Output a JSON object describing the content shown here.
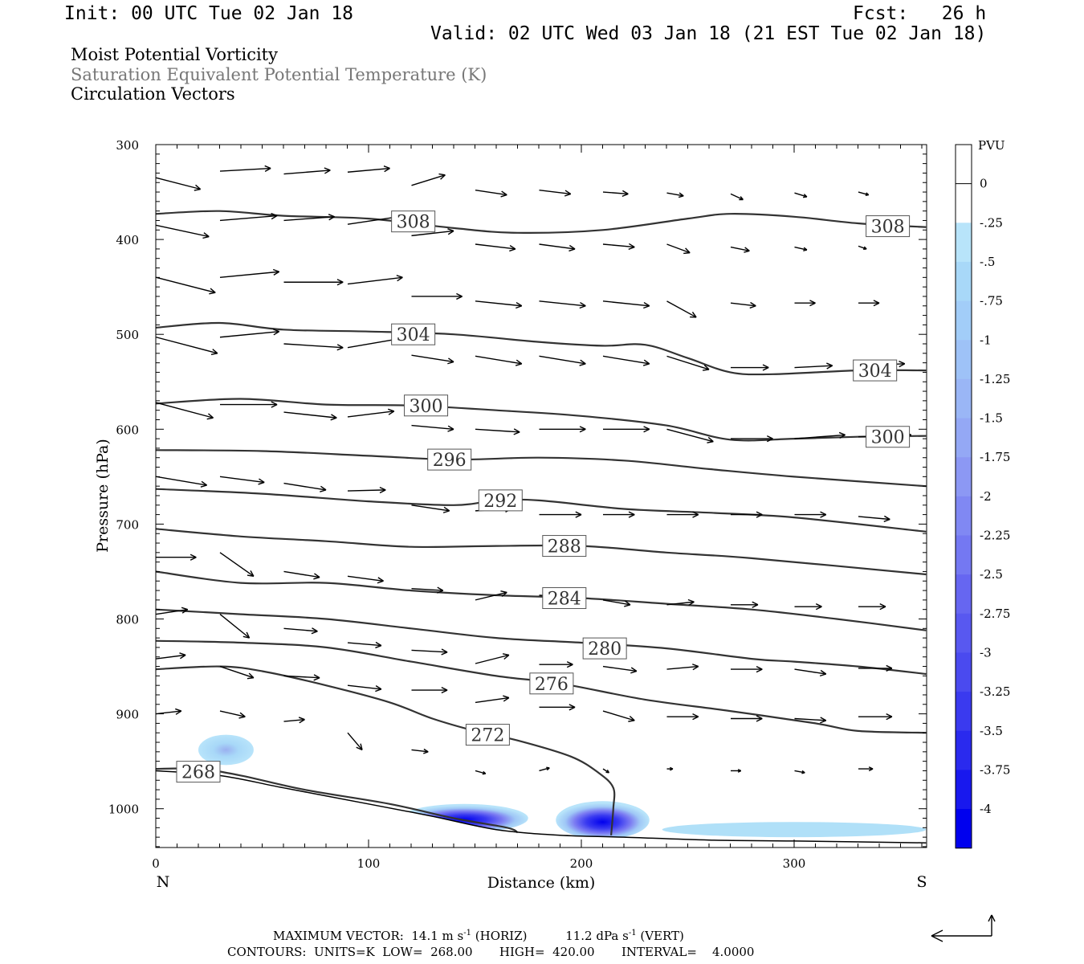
{
  "header": {
    "init": "Init: 00 UTC Tue 02 Jan 18",
    "fcst": "Fcst:   26 h",
    "valid": "Valid: 02 UTC Wed 03 Jan 18 (21 EST Tue 02 Jan 18)"
  },
  "fields": [
    "Moist Potential Vorticity",
    "Saturation Equivalent Potential Temperature (K)",
    "Circulation Vectors"
  ],
  "colors": {
    "contour": "#333333",
    "vector": "#000000",
    "pv_light": "#b0e0f8",
    "pv_dark": "#0000ee"
  },
  "footer": {
    "max_vector_prefix": "MAXIMUM VECTOR:",
    "horiz_value": "14.1 m s",
    "horiz_sup": "-1",
    "horiz_label": "(HORIZ)",
    "vert_value": "11.2 dPa s",
    "vert_sup": "-1",
    "vert_label": "(VERT)",
    "contours": "CONTOURS:  UNITS=K  LOW=  268.00       HIGH=  420.00       INTERVAL=    4.0000"
  },
  "chart_data": {
    "type": "cross-section",
    "xlabel": "Distance (km)",
    "ylabel": "Pressure (hPa)",
    "xlim": [
      0,
      362
    ],
    "ylim": [
      300,
      1040
    ],
    "x_ticks": [
      0,
      100,
      200,
      300
    ],
    "y_ticks": [
      300,
      400,
      500,
      600,
      700,
      800,
      900,
      1000
    ],
    "left_end_label": "N",
    "right_end_label": "S",
    "colorbar": {
      "title": "PVU",
      "levels": [
        "0",
        "-.25",
        "-.5",
        "-.75",
        "-1",
        "-1.25",
        "-1.5",
        "-1.75",
        "-2",
        "-2.25",
        "-2.5",
        "-2.75",
        "-3",
        "-3.25",
        "-3.5",
        "-3.75",
        "-4"
      ]
    },
    "contours": [
      {
        "label": "308",
        "points": [
          [
            0,
            373
          ],
          [
            30,
            370
          ],
          [
            60,
            375
          ],
          [
            100,
            378
          ],
          [
            140,
            388
          ],
          [
            170,
            393
          ],
          [
            210,
            390
          ],
          [
            250,
            378
          ],
          [
            270,
            373
          ],
          [
            300,
            376
          ],
          [
            330,
            383
          ],
          [
            362,
            387
          ]
        ],
        "label_pos": [
          [
            121,
            381
          ],
          [
            344,
            386
          ]
        ]
      },
      {
        "label": "304",
        "points": [
          [
            0,
            493
          ],
          [
            30,
            488
          ],
          [
            60,
            495
          ],
          [
            100,
            497
          ],
          [
            140,
            500
          ],
          [
            180,
            508
          ],
          [
            210,
            512
          ],
          [
            230,
            511
          ],
          [
            250,
            525
          ],
          [
            270,
            540
          ],
          [
            290,
            542
          ],
          [
            330,
            538
          ],
          [
            362,
            538
          ]
        ],
        "label_pos": [
          [
            121,
            500
          ],
          [
            338,
            538
          ]
        ]
      },
      {
        "label": "300",
        "points": [
          [
            0,
            573
          ],
          [
            40,
            568
          ],
          [
            80,
            574
          ],
          [
            120,
            575
          ],
          [
            160,
            580
          ],
          [
            200,
            586
          ],
          [
            240,
            596
          ],
          [
            270,
            611
          ],
          [
            300,
            610
          ],
          [
            330,
            608
          ],
          [
            362,
            607
          ]
        ],
        "label_pos": [
          [
            127,
            575
          ],
          [
            344,
            608
          ]
        ]
      },
      {
        "label": "296",
        "points": [
          [
            0,
            622
          ],
          [
            50,
            623
          ],
          [
            100,
            628
          ],
          [
            140,
            632
          ],
          [
            180,
            630
          ],
          [
            220,
            633
          ],
          [
            260,
            642
          ],
          [
            300,
            650
          ],
          [
            362,
            660
          ]
        ],
        "label_pos": [
          [
            138,
            632
          ]
        ]
      },
      {
        "label": "292",
        "points": [
          [
            0,
            663
          ],
          [
            50,
            668
          ],
          [
            100,
            676
          ],
          [
            140,
            680
          ],
          [
            160,
            675
          ],
          [
            180,
            675
          ],
          [
            220,
            684
          ],
          [
            260,
            688
          ],
          [
            300,
            693
          ],
          [
            362,
            708
          ]
        ],
        "label_pos": [
          [
            162,
            675
          ]
        ]
      },
      {
        "label": "288",
        "points": [
          [
            0,
            705
          ],
          [
            40,
            713
          ],
          [
            80,
            718
          ],
          [
            120,
            724
          ],
          [
            160,
            723
          ],
          [
            200,
            723
          ],
          [
            240,
            730
          ],
          [
            280,
            736
          ],
          [
            362,
            753
          ]
        ],
        "label_pos": [
          [
            192,
            723
          ]
        ]
      },
      {
        "label": "284",
        "points": [
          [
            0,
            750
          ],
          [
            40,
            762
          ],
          [
            80,
            762
          ],
          [
            120,
            770
          ],
          [
            160,
            775
          ],
          [
            200,
            778
          ],
          [
            240,
            784
          ],
          [
            280,
            790
          ],
          [
            320,
            800
          ],
          [
            362,
            812
          ]
        ],
        "label_pos": [
          [
            192,
            778
          ]
        ]
      },
      {
        "label": "280",
        "points": [
          [
            0,
            790
          ],
          [
            40,
            795
          ],
          [
            80,
            800
          ],
          [
            120,
            810
          ],
          [
            160,
            820
          ],
          [
            200,
            825
          ],
          [
            240,
            831
          ],
          [
            280,
            842
          ],
          [
            300,
            845
          ],
          [
            330,
            850
          ],
          [
            362,
            858
          ]
        ],
        "label_pos": [
          [
            211,
            831
          ]
        ]
      },
      {
        "label": "276",
        "points": [
          [
            0,
            823
          ],
          [
            40,
            825
          ],
          [
            80,
            830
          ],
          [
            120,
            845
          ],
          [
            160,
            860
          ],
          [
            190,
            868
          ],
          [
            230,
            885
          ],
          [
            270,
            897
          ],
          [
            310,
            910
          ],
          [
            330,
            918
          ],
          [
            362,
            920
          ]
        ],
        "label_pos": [
          [
            186,
            868
          ]
        ]
      },
      {
        "label": "272",
        "points": [
          [
            0,
            853
          ],
          [
            30,
            850
          ],
          [
            50,
            855
          ],
          [
            80,
            870
          ],
          [
            110,
            888
          ],
          [
            130,
            905
          ],
          [
            150,
            918
          ],
          [
            170,
            928
          ],
          [
            195,
            945
          ],
          [
            208,
            962
          ],
          [
            215,
            978
          ],
          [
            215,
            1000
          ],
          [
            214,
            1028
          ]
        ],
        "label_pos": [
          [
            156,
            922
          ]
        ]
      },
      {
        "label": "268",
        "points": [
          [
            0,
            958
          ],
          [
            20,
            958
          ],
          [
            40,
            965
          ],
          [
            70,
            980
          ],
          [
            110,
            995
          ],
          [
            140,
            1010
          ],
          [
            165,
            1020
          ],
          [
            170,
            1025
          ]
        ],
        "label_pos": [
          [
            20,
            961
          ]
        ]
      }
    ],
    "ground": [
      [
        0,
        960
      ],
      [
        30,
        965
      ],
      [
        60,
        978
      ],
      [
        100,
        995
      ],
      [
        130,
        1008
      ],
      [
        160,
        1022
      ],
      [
        190,
        1028
      ],
      [
        220,
        1030
      ],
      [
        260,
        1033
      ],
      [
        300,
        1034
      ],
      [
        362,
        1036
      ]
    ],
    "pv_blobs": [
      {
        "peak_pvu": -0.75,
        "x": 33,
        "p": 938,
        "rx": 13,
        "rp": 16
      },
      {
        "peak_pvu": -4,
        "x": 145,
        "p": 1010,
        "rx": 30,
        "rp": 15
      },
      {
        "peak_pvu": -4,
        "x": 210,
        "p": 1012,
        "rx": 22,
        "rp": 20
      },
      {
        "peak_pvu": -0.25,
        "x": 300,
        "p": 1022,
        "rx": 62,
        "rp": 8
      }
    ],
    "vectors": [
      [
        0,
        335,
        21,
        347
      ],
      [
        30,
        328,
        54,
        325
      ],
      [
        60,
        331,
        82,
        327
      ],
      [
        90,
        329,
        110,
        325
      ],
      [
        120,
        343,
        136,
        332
      ],
      [
        150,
        348,
        165,
        353
      ],
      [
        180,
        348,
        195,
        352
      ],
      [
        210,
        350,
        222,
        352
      ],
      [
        240,
        351,
        248,
        354
      ],
      [
        270,
        352,
        276,
        358
      ],
      [
        300,
        351,
        306,
        355
      ],
      [
        330,
        350,
        335,
        353
      ],
      [
        0,
        385,
        25,
        397
      ],
      [
        30,
        380,
        57,
        375
      ],
      [
        60,
        380,
        84,
        376
      ],
      [
        90,
        384,
        114,
        376
      ],
      [
        120,
        396,
        140,
        391
      ],
      [
        150,
        405,
        169,
        410
      ],
      [
        180,
        405,
        197,
        410
      ],
      [
        210,
        405,
        225,
        408
      ],
      [
        240,
        405,
        251,
        414
      ],
      [
        270,
        408,
        279,
        412
      ],
      [
        300,
        408,
        306,
        411
      ],
      [
        330,
        407,
        334,
        410
      ],
      [
        0,
        440,
        28,
        456
      ],
      [
        30,
        440,
        58,
        434
      ],
      [
        60,
        445,
        88,
        445
      ],
      [
        90,
        447,
        116,
        440
      ],
      [
        120,
        460,
        144,
        460
      ],
      [
        150,
        465,
        172,
        470
      ],
      [
        180,
        465,
        202,
        470
      ],
      [
        210,
        465,
        232,
        470
      ],
      [
        240,
        465,
        254,
        482
      ],
      [
        270,
        467,
        282,
        470
      ],
      [
        300,
        467,
        310,
        467
      ],
      [
        330,
        467,
        340,
        467
      ],
      [
        0,
        503,
        29,
        520
      ],
      [
        30,
        503,
        58,
        497
      ],
      [
        60,
        510,
        88,
        514
      ],
      [
        90,
        514,
        116,
        504
      ],
      [
        120,
        522,
        140,
        529
      ],
      [
        150,
        523,
        172,
        531
      ],
      [
        180,
        523,
        202,
        531
      ],
      [
        210,
        523,
        232,
        531
      ],
      [
        240,
        523,
        260,
        537
      ],
      [
        270,
        535,
        288,
        535
      ],
      [
        300,
        535,
        318,
        533
      ],
      [
        330,
        533,
        352,
        531
      ],
      [
        0,
        572,
        27,
        588
      ],
      [
        30,
        574,
        57,
        574
      ],
      [
        60,
        582,
        85,
        588
      ],
      [
        90,
        587,
        112,
        581
      ],
      [
        120,
        596,
        140,
        600
      ],
      [
        150,
        600,
        171,
        603
      ],
      [
        180,
        600,
        202,
        600
      ],
      [
        210,
        600,
        232,
        600
      ],
      [
        240,
        600,
        262,
        613
      ],
      [
        270,
        610,
        290,
        610
      ],
      [
        300,
        610,
        324,
        606
      ],
      [
        330,
        608,
        355,
        606
      ],
      [
        0,
        650,
        24,
        659
      ],
      [
        30,
        650,
        51,
        656
      ],
      [
        60,
        657,
        80,
        664
      ],
      [
        90,
        665,
        108,
        664
      ],
      [
        120,
        680,
        138,
        686
      ],
      [
        150,
        686,
        167,
        684
      ],
      [
        180,
        690,
        200,
        690
      ],
      [
        210,
        690,
        225,
        690
      ],
      [
        240,
        690,
        255,
        690
      ],
      [
        270,
        690,
        285,
        690
      ],
      [
        300,
        690,
        315,
        690
      ],
      [
        330,
        692,
        345,
        695
      ],
      [
        0,
        735,
        19,
        735
      ],
      [
        30,
        730,
        46,
        755
      ],
      [
        60,
        750,
        77,
        756
      ],
      [
        90,
        755,
        107,
        760
      ],
      [
        120,
        768,
        135,
        770
      ],
      [
        150,
        780,
        165,
        772
      ],
      [
        180,
        775,
        195,
        777
      ],
      [
        210,
        780,
        223,
        785
      ],
      [
        240,
        785,
        253,
        782
      ],
      [
        270,
        785,
        283,
        785
      ],
      [
        300,
        787,
        313,
        787
      ],
      [
        330,
        787,
        343,
        787
      ],
      [
        0,
        795,
        15,
        790
      ],
      [
        30,
        795,
        44,
        820
      ],
      [
        60,
        810,
        76,
        813
      ],
      [
        90,
        825,
        106,
        828
      ],
      [
        120,
        833,
        137,
        835
      ],
      [
        150,
        847,
        166,
        838
      ],
      [
        180,
        848,
        196,
        848
      ],
      [
        210,
        850,
        226,
        855
      ],
      [
        240,
        853,
        255,
        850
      ],
      [
        270,
        853,
        285,
        853
      ],
      [
        300,
        853,
        315,
        858
      ],
      [
        330,
        852,
        346,
        852
      ],
      [
        0,
        842,
        14,
        838
      ],
      [
        30,
        850,
        46,
        862
      ],
      [
        60,
        860,
        77,
        862
      ],
      [
        90,
        870,
        106,
        874
      ],
      [
        120,
        875,
        137,
        875
      ],
      [
        150,
        888,
        166,
        883
      ],
      [
        180,
        893,
        197,
        893
      ],
      [
        210,
        897,
        225,
        907
      ],
      [
        240,
        903,
        255,
        903
      ],
      [
        270,
        905,
        285,
        905
      ],
      [
        300,
        905,
        315,
        907
      ],
      [
        330,
        903,
        346,
        903
      ],
      [
        0,
        900,
        12,
        897
      ],
      [
        30,
        897,
        42,
        903
      ],
      [
        60,
        908,
        70,
        906
      ],
      [
        90,
        920,
        97,
        938
      ],
      [
        120,
        938,
        128,
        940
      ],
      [
        150,
        960,
        155,
        963
      ],
      [
        180,
        960,
        185,
        957
      ],
      [
        210,
        958,
        213,
        962
      ],
      [
        240,
        958,
        243,
        958
      ],
      [
        270,
        960,
        275,
        960
      ],
      [
        300,
        960,
        305,
        962
      ],
      [
        330,
        958,
        337,
        958
      ]
    ]
  }
}
